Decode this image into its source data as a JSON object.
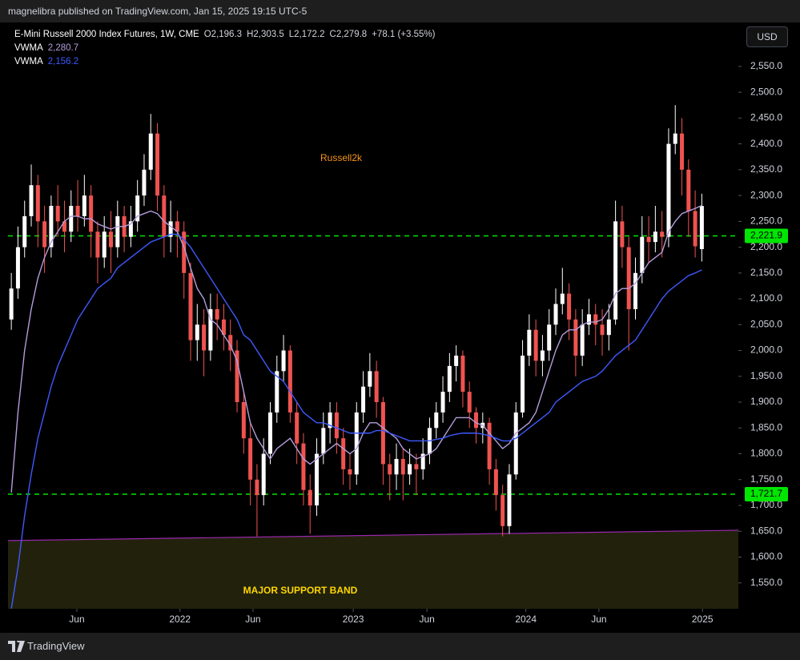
{
  "header": {
    "publisher": "magnelibra published on TradingView.com, Jan 15, 2025 19:15 UTC-5",
    "currency": "USD",
    "footer": "TradingView"
  },
  "chart_data": {
    "type": "candlestick",
    "title": "E-Mini Russell 2000 Index Futures, 1W, CME",
    "ohlc_text": [
      "O2,196.3",
      "H2,303.5",
      "L2,172.2",
      "C2,279.8",
      "+78.1 (+3.55%)"
    ],
    "annotations": {
      "title": "Russell2k",
      "band_label": "MAJOR SUPPORT BAND"
    },
    "up_color": "#ffffff",
    "down_color": "#ef5350",
    "xlim": [
      -0.5,
      109.5
    ],
    "xticks": [
      {
        "value": 9.87,
        "label": "Jun"
      },
      {
        "value": 25.4,
        "label": "2022"
      },
      {
        "value": 36.4,
        "label": "Jun"
      },
      {
        "value": 51.5,
        "label": "2023"
      },
      {
        "value": 62.6,
        "label": "Jun"
      },
      {
        "value": 77.5,
        "label": "2024"
      },
      {
        "value": 88.5,
        "label": "Jun"
      },
      {
        "value": 104.1,
        "label": "2025"
      }
    ],
    "ylim": [
      1500,
      2632
    ],
    "yticks": [
      {
        "value": 1550,
        "label": "1,550.0"
      },
      {
        "value": 1600,
        "label": "1,600.0"
      },
      {
        "value": 1650,
        "label": "1,650.0"
      },
      {
        "value": 1700,
        "label": "1,700.0"
      },
      {
        "value": 1750,
        "label": "1,750.0"
      },
      {
        "value": 1800,
        "label": "1,800.0"
      },
      {
        "value": 1850,
        "label": "1,850.0"
      },
      {
        "value": 1900,
        "label": "1,900.0"
      },
      {
        "value": 1950,
        "label": "1,950.0"
      },
      {
        "value": 2000,
        "label": "2,000.0"
      },
      {
        "value": 2050,
        "label": "2,050.0"
      },
      {
        "value": 2100,
        "label": "2,100.0"
      },
      {
        "value": 2150,
        "label": "2,150.0"
      },
      {
        "value": 2200,
        "label": "2,200.0"
      },
      {
        "value": 2250,
        "label": "2,250.0"
      },
      {
        "value": 2300,
        "label": "2,300.0"
      },
      {
        "value": 2350,
        "label": "2,350.0"
      },
      {
        "value": 2400,
        "label": "2,400.0"
      },
      {
        "value": 2450,
        "label": "2,450.0"
      },
      {
        "value": 2500,
        "label": "2,500.0"
      },
      {
        "value": 2550,
        "label": "2,550.0"
      }
    ],
    "ohlc": [
      [
        2060,
        2150,
        2040,
        2120
      ],
      [
        2120,
        2240,
        2100,
        2200
      ],
      [
        2200,
        2290,
        2180,
        2260
      ],
      [
        2260,
        2360,
        2240,
        2320
      ],
      [
        2320,
        2340,
        2200,
        2250
      ],
      [
        2250,
        2280,
        2150,
        2200
      ],
      [
        2200,
        2300,
        2180,
        2280
      ],
      [
        2280,
        2320,
        2220,
        2250
      ],
      [
        2250,
        2290,
        2190,
        2230
      ],
      [
        2230,
        2310,
        2210,
        2280
      ],
      [
        2280,
        2330,
        2230,
        2260
      ],
      [
        2260,
        2340,
        2240,
        2300
      ],
      [
        2300,
        2320,
        2180,
        2230
      ],
      [
        2230,
        2250,
        2130,
        2180
      ],
      [
        2180,
        2260,
        2160,
        2230
      ],
      [
        2230,
        2270,
        2150,
        2200
      ],
      [
        2200,
        2290,
        2180,
        2260
      ],
      [
        2260,
        2280,
        2190,
        2220
      ],
      [
        2220,
        2280,
        2200,
        2250
      ],
      [
        2250,
        2330,
        2230,
        2300
      ],
      [
        2300,
        2380,
        2280,
        2350
      ],
      [
        2350,
        2458,
        2330,
        2420
      ],
      [
        2420,
        2440,
        2270,
        2300
      ],
      [
        2300,
        2320,
        2180,
        2220
      ],
      [
        2220,
        2290,
        2190,
        2250
      ],
      [
        2250,
        2270,
        2180,
        2230
      ],
      [
        2230,
        2250,
        2100,
        2150
      ],
      [
        2150,
        2170,
        1980,
        2020
      ],
      [
        2020,
        2090,
        1980,
        2050
      ],
      [
        2050,
        2080,
        1950,
        2000
      ],
      [
        2000,
        2110,
        1980,
        2080
      ],
      [
        2080,
        2110,
        2020,
        2060
      ],
      [
        2060,
        2090,
        2000,
        2030
      ],
      [
        2030,
        2060,
        1960,
        2000
      ],
      [
        2000,
        2020,
        1880,
        1900
      ],
      [
        1900,
        1920,
        1800,
        1830
      ],
      [
        1830,
        1860,
        1700,
        1750
      ],
      [
        1750,
        1780,
        1640,
        1720
      ],
      [
        1720,
        1830,
        1700,
        1800
      ],
      [
        1800,
        1900,
        1780,
        1880
      ],
      [
        1880,
        1990,
        1860,
        1960
      ],
      [
        1960,
        2030,
        1940,
        2000
      ],
      [
        2000,
        2010,
        1860,
        1880
      ],
      [
        1880,
        1900,
        1780,
        1820
      ],
      [
        1820,
        1840,
        1700,
        1730
      ],
      [
        1730,
        1760,
        1645,
        1700
      ],
      [
        1700,
        1830,
        1680,
        1800
      ],
      [
        1800,
        1880,
        1780,
        1850
      ],
      [
        1850,
        1900,
        1820,
        1880
      ],
      [
        1880,
        1900,
        1800,
        1830
      ],
      [
        1830,
        1850,
        1740,
        1770
      ],
      [
        1770,
        1800,
        1730,
        1760
      ],
      [
        1760,
        1900,
        1740,
        1880
      ],
      [
        1880,
        1960,
        1860,
        1930
      ],
      [
        1930,
        1995,
        1910,
        1960
      ],
      [
        1960,
        1980,
        1870,
        1900
      ],
      [
        1900,
        1910,
        1740,
        1780
      ],
      [
        1780,
        1800,
        1710,
        1760
      ],
      [
        1760,
        1820,
        1730,
        1790
      ],
      [
        1790,
        1810,
        1710,
        1760
      ],
      [
        1760,
        1810,
        1740,
        1780
      ],
      [
        1780,
        1800,
        1720,
        1770
      ],
      [
        1770,
        1830,
        1750,
        1800
      ],
      [
        1800,
        1870,
        1780,
        1850
      ],
      [
        1850,
        1900,
        1830,
        1880
      ],
      [
        1880,
        1950,
        1860,
        1920
      ],
      [
        1920,
        1995,
        1900,
        1970
      ],
      [
        1970,
        2010,
        1940,
        1990
      ],
      [
        1990,
        2000,
        1890,
        1920
      ],
      [
        1920,
        1940,
        1850,
        1880
      ],
      [
        1880,
        1890,
        1820,
        1850
      ],
      [
        1850,
        1880,
        1820,
        1860
      ],
      [
        1860,
        1870,
        1740,
        1770
      ],
      [
        1770,
        1790,
        1690,
        1720
      ],
      [
        1720,
        1740,
        1640,
        1660
      ],
      [
        1660,
        1780,
        1645,
        1760
      ],
      [
        1760,
        1900,
        1750,
        1880
      ],
      [
        1880,
        2020,
        1870,
        1990
      ],
      [
        1990,
        2070,
        1970,
        2040
      ],
      [
        2040,
        2060,
        1950,
        1980
      ],
      [
        1980,
        2030,
        1950,
        2000
      ],
      [
        2000,
        2080,
        1980,
        2050
      ],
      [
        2050,
        2120,
        2030,
        2090
      ],
      [
        2090,
        2160,
        2070,
        2110
      ],
      [
        2110,
        2130,
        2020,
        2060
      ],
      [
        2060,
        2080,
        1950,
        1990
      ],
      [
        1990,
        2080,
        1970,
        2050
      ],
      [
        2050,
        2100,
        2030,
        2070
      ],
      [
        2070,
        2090,
        2010,
        2050
      ],
      [
        2050,
        2080,
        1990,
        2030
      ],
      [
        2030,
        2090,
        2000,
        2060
      ],
      [
        2060,
        2290,
        2050,
        2250
      ],
      [
        2250,
        2280,
        2160,
        2200
      ],
      [
        2200,
        2220,
        2000,
        2080
      ],
      [
        2080,
        2180,
        2060,
        2150
      ],
      [
        2150,
        2260,
        2130,
        2220
      ],
      [
        2220,
        2260,
        2170,
        2210
      ],
      [
        2210,
        2280,
        2190,
        2230
      ],
      [
        2230,
        2270,
        2180,
        2220
      ],
      [
        2220,
        2430,
        2200,
        2400
      ],
      [
        2400,
        2475,
        2380,
        2420
      ],
      [
        2420,
        2450,
        2300,
        2350
      ],
      [
        2350,
        2370,
        2220,
        2270
      ],
      [
        2270,
        2310,
        2180,
        2201.7
      ],
      [
        2196.3,
        2303.5,
        2172.2,
        2279.8
      ]
    ],
    "lines": [
      {
        "name": "VWMA",
        "label": "2,280.7",
        "color": "#b39ddb",
        "values": [
          1725,
          1880,
          2000,
          2080,
          2140,
          2180,
          2210,
          2230,
          2250,
          2260,
          2260,
          2255,
          2255,
          2245,
          2240,
          2235,
          2240,
          2240,
          2245,
          2260,
          2265,
          2270,
          2265,
          2250,
          2240,
          2230,
          2200,
          2160,
          2120,
          2100,
          2060,
          2050,
          2030,
          2010,
          1980,
          1920,
          1860,
          1830,
          1810,
          1790,
          1810,
          1820,
          1830,
          1810,
          1790,
          1780,
          1790,
          1800,
          1810,
          1820,
          1810,
          1800,
          1810,
          1840,
          1860,
          1860,
          1850,
          1840,
          1830,
          1810,
          1800,
          1790,
          1795,
          1800,
          1810,
          1830,
          1850,
          1870,
          1870,
          1870,
          1860,
          1855,
          1840,
          1825,
          1810,
          1820,
          1840,
          1850,
          1860,
          1880,
          1920,
          1960,
          2000,
          2030,
          2040,
          2040,
          2050,
          2055,
          2055,
          2060,
          2080,
          2110,
          2120,
          2120,
          2130,
          2150,
          2170,
          2180,
          2190,
          2230,
          2250,
          2265,
          2270,
          2275,
          2280.7
        ]
      },
      {
        "name": "VWMA",
        "label": "2,156.2",
        "color": "#3d5afe",
        "values": [
          1500,
          1580,
          1680,
          1760,
          1830,
          1880,
          1930,
          1970,
          2000,
          2030,
          2060,
          2080,
          2100,
          2120,
          2130,
          2140,
          2160,
          2170,
          2180,
          2190,
          2200,
          2210,
          2215,
          2220,
          2225,
          2225,
          2215,
          2200,
          2180,
          2160,
          2140,
          2120,
          2100,
          2080,
          2060,
          2030,
          2020,
          2000,
          1980,
          1960,
          1950,
          1940,
          1920,
          1900,
          1880,
          1870,
          1860,
          1860,
          1855,
          1850,
          1845,
          1840,
          1840,
          1840,
          1840,
          1845,
          1845,
          1840,
          1835,
          1830,
          1825,
          1825,
          1825,
          1825,
          1828,
          1830,
          1835,
          1838,
          1840,
          1840,
          1840,
          1838,
          1835,
          1830,
          1825,
          1825,
          1830,
          1840,
          1850,
          1860,
          1870,
          1880,
          1900,
          1910,
          1920,
          1930,
          1940,
          1945,
          1950,
          1960,
          1975,
          1990,
          2000,
          2010,
          2020,
          2040,
          2060,
          2080,
          2100,
          2115,
          2125,
          2135,
          2145,
          2150,
          2156.2
        ]
      }
    ],
    "hlines": [
      {
        "value": 2221.9,
        "label": "2,221.9"
      },
      {
        "value": 1721.7,
        "label": "1,721.7"
      }
    ],
    "hline_color": "#00e600",
    "support_line": {
      "values": [
        1632,
        1652
      ],
      "color": "#9c27b0",
      "fill": "#22220c"
    }
  }
}
